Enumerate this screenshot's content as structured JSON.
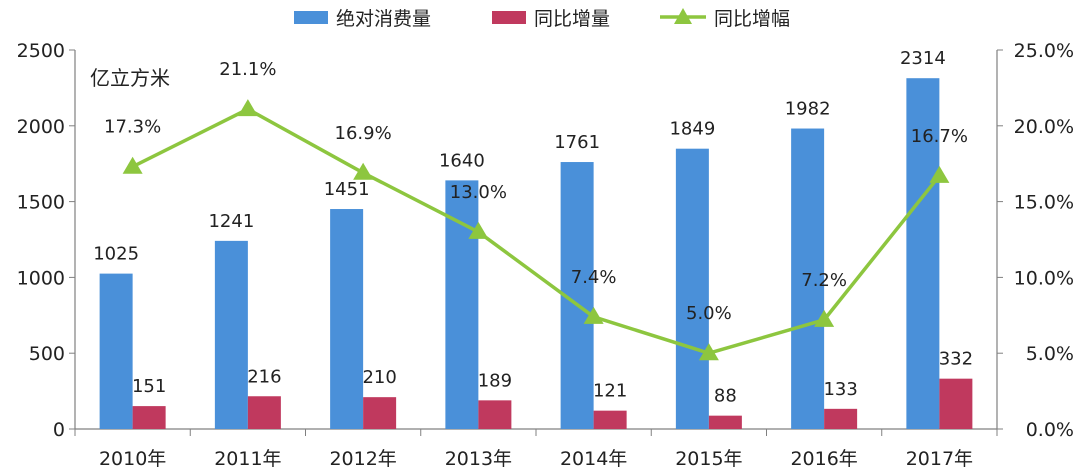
{
  "chart_data": {
    "type": "bar",
    "unit_label": "亿立方米",
    "categories": [
      "2010年",
      "2011年",
      "2012年",
      "2013年",
      "2014年",
      "2015年",
      "2016年",
      "2017年"
    ],
    "series": [
      {
        "name": "绝对消费量",
        "type": "bar",
        "axis": "left",
        "color": "#4a90d9",
        "values": [
          1025,
          1241,
          1451,
          1640,
          1761,
          1849,
          1982,
          2314
        ],
        "labels": [
          "1025",
          "1241",
          "1451",
          "1640",
          "1761",
          "1849",
          "1982",
          "2314"
        ]
      },
      {
        "name": "同比增量",
        "type": "bar",
        "axis": "left",
        "color": "#c0395e",
        "values": [
          151,
          216,
          210,
          189,
          121,
          88,
          133,
          332
        ],
        "labels": [
          "151",
          "216",
          "210",
          "189",
          "121",
          "88",
          "133",
          "332"
        ]
      },
      {
        "name": "同比增幅",
        "type": "line",
        "axis": "right",
        "color": "#8dc63f",
        "values": [
          17.3,
          21.1,
          16.9,
          13.0,
          7.4,
          5.0,
          7.2,
          16.7
        ],
        "labels": [
          "17.3%",
          "21.1%",
          "16.9%",
          "13.0%",
          "7.4%",
          "5.0%",
          "7.2%",
          "16.7%"
        ]
      }
    ],
    "y_left": {
      "min": 0,
      "max": 2500,
      "ticks": [
        "0",
        "500",
        "1000",
        "1500",
        "2000",
        "2500"
      ]
    },
    "y_right": {
      "min": 0,
      "max": 25,
      "ticks": [
        "0.0%",
        "5.0%",
        "10.0%",
        "15.0%",
        "20.0%",
        "25.0%"
      ]
    },
    "legend_position": "top",
    "grid": false
  }
}
